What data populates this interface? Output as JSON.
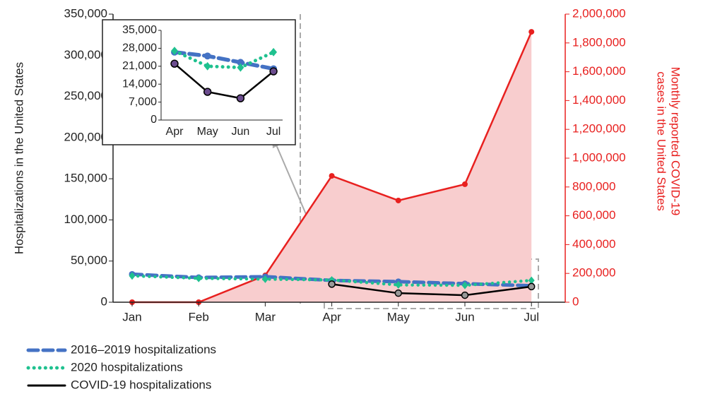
{
  "chart_data": {
    "type": "line",
    "categories": [
      "Jan",
      "Feb",
      "Mar",
      "Apr",
      "May",
      "Jun",
      "Jul"
    ],
    "ylabel": "Hospitalizations in the United States",
    "y2label": [
      "Monthly reported COVID-19",
      "cases in the United States"
    ],
    "ylim": [
      0,
      350000
    ],
    "yticks": [
      0,
      {
        "value": 50000,
        "label": "50,000"
      },
      {
        "value": 100000,
        "label": "100,000"
      },
      {
        "value": 150000,
        "label": "150,000"
      },
      {
        "value": 200000,
        "label": "200,000"
      },
      {
        "value": 250000,
        "label": "250,000"
      },
      {
        "value": 300000,
        "label": "300,000"
      },
      {
        "value": 350000,
        "label": "350,000"
      }
    ],
    "y2lim": [
      0,
      2000000
    ],
    "y2ticks": [
      0,
      {
        "value": 200000,
        "label": "200,000"
      },
      {
        "value": 400000,
        "label": "400,000"
      },
      {
        "value": 600000,
        "label": "600,000"
      },
      {
        "value": 800000,
        "label": "800,000"
      },
      {
        "value": 1000000,
        "label": "1,000,000"
      },
      {
        "value": 1200000,
        "label": "1,200,000"
      },
      {
        "value": 1400000,
        "label": "1,400,000"
      },
      {
        "value": 1600000,
        "label": "1,600,000"
      },
      {
        "value": 1800000,
        "label": "1,800,000"
      },
      {
        "value": 2000000,
        "label": "2,000,000"
      }
    ],
    "series": [
      {
        "name": "2016–2019 hospitalizations",
        "color": "#4472c4",
        "style": "dashed",
        "values": [
          34000,
          30000,
          31000,
          26500,
          25000,
          22500,
          20000
        ]
      },
      {
        "name": "2020 hospitalizations",
        "color": "#1fc18f",
        "style": "dotted",
        "values": [
          32000,
          29000,
          28000,
          27000,
          21000,
          20500,
          26500
        ]
      },
      {
        "name": "COVID-19 hospitalizations",
        "color": "#000000",
        "style": "solid",
        "values": [
          null,
          null,
          null,
          22000,
          11000,
          8500,
          19000
        ]
      },
      {
        "color": "#e8201f",
        "style": "area",
        "axis": "y2",
        "values": [
          0,
          0,
          186000,
          877000,
          706000,
          819000,
          1877000
        ]
      }
    ],
    "inset": {
      "ylim": [
        0,
        35000
      ],
      "yticks": [
        0,
        {
          "value": 7000,
          "label": "7,000"
        },
        {
          "value": 14000,
          "label": "14,000"
        },
        {
          "value": 21000,
          "label": "21,000"
        },
        {
          "value": 28000,
          "label": "28,000"
        },
        {
          "value": 35000,
          "label": "35,000"
        }
      ]
    }
  }
}
